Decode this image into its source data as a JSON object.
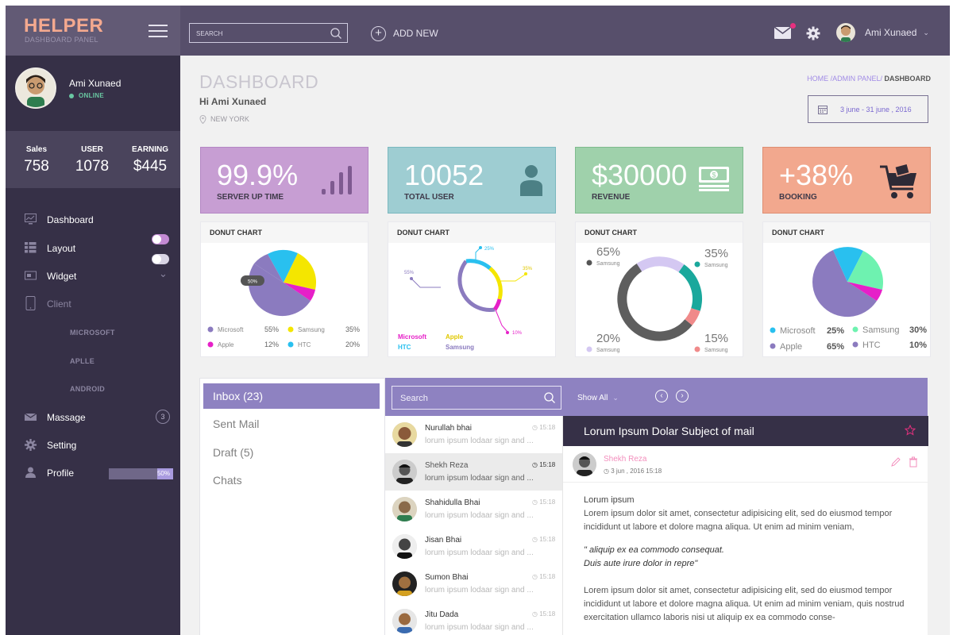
{
  "app": {
    "title": "HELPER",
    "subtitle": "DASHBOARD PANEL"
  },
  "topbar": {
    "search_placeholder": "SEARCH",
    "add_new_label": "ADD NEW",
    "user_name": "Ami Xunaed",
    "colors": {
      "background": "#574f6b",
      "logo_bg": "#625a75",
      "logo_text": "#f4a98f",
      "notification": "#e6307f"
    }
  },
  "sidebar": {
    "profile": {
      "name": "Ami Xunaed",
      "status": "ONLINE"
    },
    "stats": [
      {
        "label": "Sales",
        "value": "758"
      },
      {
        "label": "USER",
        "value": "1078"
      },
      {
        "label": "EARNING",
        "value": "$445"
      }
    ],
    "nav": {
      "dashboard": "Dashboard",
      "layout": "Layout",
      "widget": "Widget",
      "client": "Client",
      "client_sub": [
        "MICROSOFT",
        "APLLE",
        "ANDROID"
      ],
      "massage": "Massage",
      "massage_count": "3",
      "setting": "Setting",
      "profile": "Profile",
      "profile_progress_label": "50%",
      "profile_progress": 0.5
    },
    "toggles": {
      "layout_on": true,
      "widget_on": false
    }
  },
  "header": {
    "title": "DASHBOARD",
    "greeting": "Hi Ami Xunaed",
    "location": "NEW YORK",
    "breadcrumb_path": "HOME /ADMIN PANEL/",
    "breadcrumb_current": " DASHBOARD",
    "date_range": "3 june  -  31 june , 2016"
  },
  "cards": [
    {
      "value": "99.9%",
      "caption": "SERVER UP TIME",
      "color": "#c79ed3",
      "icon": "bar-chart-icon"
    },
    {
      "value": "10052",
      "caption": "TOTAL USER",
      "color": "#9ecdd2",
      "icon": "user-icon"
    },
    {
      "value": "$30000",
      "caption": "REVENUE",
      "color": "#9fd1ab",
      "icon": "money-icon"
    },
    {
      "value": "+38%",
      "caption": "BOOKING",
      "color": "#f2a88e",
      "icon": "cart-icon"
    }
  ],
  "donuts": {
    "title": "DONUT CHART",
    "chart1": {
      "badge": "50%",
      "legend": [
        {
          "name": "Microsoft",
          "value": "55%",
          "color": "#8b7bbf"
        },
        {
          "name": "Samsung",
          "value": "35%",
          "color": "#f4e600"
        },
        {
          "name": "Apple",
          "value": "12%",
          "color": "#e620c8"
        },
        {
          "name": "HTC",
          "value": "20%",
          "color": "#29c0ef"
        }
      ]
    },
    "chart2": {
      "labels": [
        "25%",
        "35%",
        "55%",
        "10%"
      ],
      "legend": [
        {
          "name": "Microsoft",
          "color": "#e620c8"
        },
        {
          "name": "Apple",
          "color": "#f4e600"
        },
        {
          "name": "HTC",
          "color": "#29c0ef"
        },
        {
          "name": "Samsung",
          "color": "#8b7bbf"
        }
      ]
    },
    "chart3": {
      "labels": [
        {
          "value": "65%",
          "name": "Samsung",
          "color": "#555555"
        },
        {
          "value": "35%",
          "name": "Samsung",
          "color": "#1aa89c"
        },
        {
          "value": "20%",
          "name": "Samsung",
          "color": "#d4c8f2"
        },
        {
          "value": "15%",
          "name": "Samsung",
          "color": "#f08a8a"
        }
      ]
    },
    "chart4": {
      "legend": [
        {
          "name": "Microsoft",
          "value": "25%",
          "color": "#29c0ef"
        },
        {
          "name": "Samsung",
          "value": "30%",
          "color": "#6ef2b0"
        },
        {
          "name": "Apple",
          "value": "65%",
          "color": "#8b7bbf"
        },
        {
          "name": "HTC",
          "value": "10%",
          "color": "#8b7bbf"
        }
      ]
    }
  },
  "mail": {
    "folders": [
      "Inbox (23)",
      "Sent Mail",
      "Draft (5)",
      "Chats"
    ],
    "search_placeholder": "Search",
    "show_all": "Show All",
    "messages": [
      {
        "name": "Nurullah bhai",
        "preview": "lorum ipsum lodaar sign and ...",
        "time": "15:18"
      },
      {
        "name": "Shekh Reza",
        "preview": "lorum ipsum lodaar sign and ...",
        "time": "15:18"
      },
      {
        "name": "Shahidulla Bhai",
        "preview": "lorum ipsum lodaar sign and ...",
        "time": "15:18"
      },
      {
        "name": "Jisan Bhai",
        "preview": "lorum ipsum lodaar sign and ...",
        "time": "15:18"
      },
      {
        "name": "Sumon Bhai",
        "preview": "lorum ipsum lodaar sign and ...",
        "time": "15:18"
      },
      {
        "name": "Jitu Dada",
        "preview": "lorum ipsum lodaar sign and ...",
        "time": "15:18"
      }
    ],
    "reader": {
      "subject": "Lorum Ipsum Dolar Subject of mail",
      "from": "Shekh Reza",
      "date": "3 jun , 2016   15:18",
      "heading": "Lorum ipsum",
      "para1": "Lorem ipsum dolor sit amet, consectetur adipisicing elit, sed do eiusmod tempor incididunt ut labore et dolore magna aliqua. Ut enim ad minim veniam,",
      "quote1": "\" aliquip ex ea commodo consequat.",
      "quote2": "Duis aute irure dolor in repre\"",
      "para2": "Lorem ipsum dolor sit amet, consectetur adipisicing elit, sed do eiusmod tempor incididunt ut labore et dolore magna aliqua. Ut enim ad minim veniam, quis nostrud exercitation ullamco laboris nisi ut aliquip ex ea commodo conse-"
    }
  }
}
